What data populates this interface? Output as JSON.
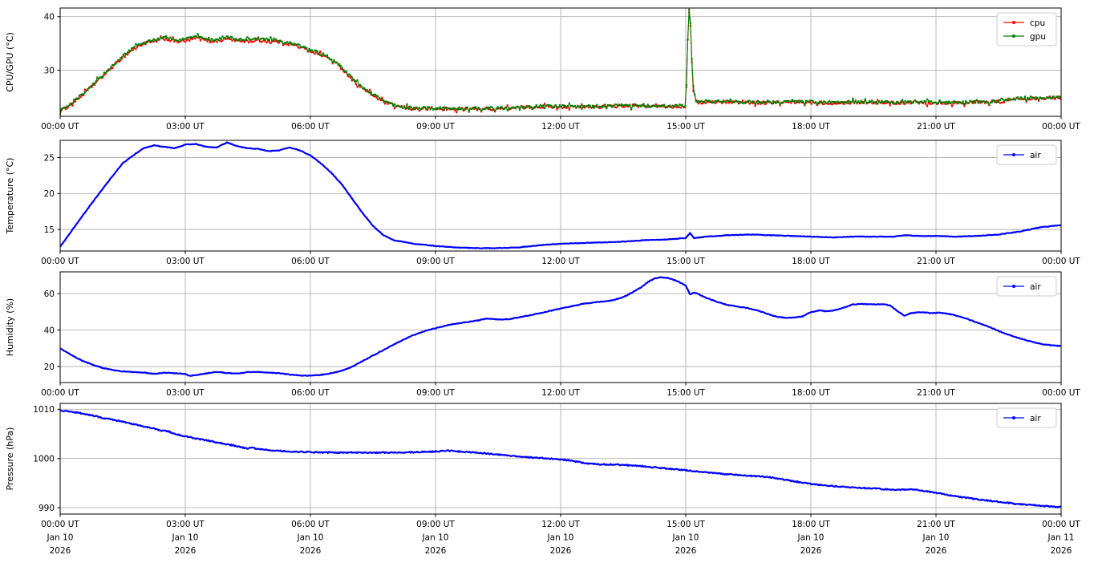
{
  "figure": {
    "background": "#ffffff",
    "grid_color": "#b0b0b0",
    "spine_color": "#000000",
    "legend_border_color": "#cccccc",
    "legend_bg": "#ffffff"
  },
  "x_axis": {
    "tick_hours": [
      0,
      3,
      6,
      9,
      12,
      15,
      18,
      21,
      24
    ],
    "tick_labels": [
      "00:00 UT",
      "03:00 UT",
      "06:00 UT",
      "09:00 UT",
      "12:00 UT",
      "15:00 UT",
      "18:00 UT",
      "21:00 UT",
      "00:00 UT"
    ],
    "date_labels": [
      "Jan 10",
      "Jan 10",
      "Jan 10",
      "Jan 10",
      "Jan 10",
      "Jan 10",
      "Jan 10",
      "Jan 10",
      "Jan 11"
    ],
    "year_labels": [
      "2026",
      "2026",
      "2026",
      "2026",
      "2026",
      "2026",
      "2026",
      "2026",
      "2026"
    ],
    "range_hours": [
      0,
      24
    ]
  },
  "chart_data": [
    {
      "type": "line",
      "panel": "cpu-gpu",
      "ylabel": "CPU/GPU (°C)",
      "ylim": [
        21.4,
        41.6
      ],
      "yticks": [
        30,
        40
      ],
      "grid": true,
      "legend_position": "upper right",
      "marker_style": "dot-scatter",
      "series": [
        {
          "name": "cpu",
          "color": "#ff0000",
          "noise": 0.28,
          "x": [
            0,
            0.25,
            0.5,
            0.75,
            1.0,
            1.25,
            1.5,
            1.75,
            2.0,
            2.25,
            2.5,
            2.75,
            3.0,
            3.25,
            3.5,
            3.75,
            4.0,
            4.25,
            4.5,
            4.75,
            5.0,
            5.25,
            5.5,
            5.75,
            6.0,
            6.25,
            6.5,
            6.75,
            7.0,
            7.25,
            7.5,
            7.75,
            8.0,
            8.25,
            8.5,
            9.0,
            9.5,
            10.0,
            10.5,
            11.0,
            11.5,
            12.0,
            12.5,
            13.0,
            13.5,
            14.0,
            14.5,
            15.0,
            15.07,
            15.1,
            15.17,
            15.25,
            15.5,
            16.0,
            16.5,
            17.0,
            17.5,
            18.0,
            18.5,
            19.0,
            19.5,
            20.0,
            20.5,
            21.0,
            21.5,
            22.0,
            22.5,
            22.9,
            23.0,
            23.5,
            24.0
          ],
          "values": [
            22.3,
            23.6,
            25.1,
            26.9,
            28.7,
            30.6,
            32.4,
            33.9,
            35.0,
            35.3,
            35.9,
            35.4,
            35.4,
            36.0,
            35.6,
            35.4,
            35.9,
            35.5,
            35.4,
            35.5,
            35.4,
            35.3,
            34.9,
            34.3,
            33.6,
            32.9,
            32.0,
            30.4,
            28.3,
            26.6,
            25.3,
            24.1,
            23.4,
            23.0,
            22.8,
            22.8,
            22.7,
            22.8,
            22.8,
            23.0,
            23.2,
            23.2,
            23.1,
            23.2,
            23.3,
            23.3,
            23.2,
            23.3,
            41.0,
            41.2,
            27.0,
            24.0,
            24.0,
            24.1,
            24.0,
            23.9,
            24.0,
            24.0,
            23.9,
            24.0,
            24.0,
            23.9,
            24.0,
            23.9,
            23.9,
            24.0,
            24.1,
            24.6,
            24.7,
            24.8,
            24.9
          ]
        },
        {
          "name": "gpu",
          "color": "#008000",
          "noise": 0.25,
          "x": [
            0,
            0.25,
            0.5,
            0.75,
            1.0,
            1.25,
            1.5,
            1.75,
            2.0,
            2.25,
            2.5,
            2.75,
            3.0,
            3.25,
            3.5,
            3.75,
            4.0,
            4.25,
            4.5,
            4.75,
            5.0,
            5.25,
            5.5,
            5.75,
            6.0,
            6.25,
            6.5,
            6.75,
            7.0,
            7.25,
            7.5,
            7.75,
            8.0,
            8.25,
            8.5,
            9.0,
            9.5,
            10.0,
            10.5,
            11.0,
            11.5,
            12.0,
            12.5,
            13.0,
            13.5,
            14.0,
            14.5,
            15.0,
            15.07,
            15.1,
            15.17,
            15.25,
            15.5,
            16.0,
            16.5,
            17.0,
            17.5,
            18.0,
            18.5,
            19.0,
            19.5,
            20.0,
            20.5,
            21.0,
            21.5,
            22.0,
            22.5,
            22.9,
            23.0,
            23.5,
            24.0
          ],
          "values": [
            22.5,
            23.8,
            25.3,
            27.1,
            28.9,
            30.8,
            32.6,
            34.1,
            35.2,
            35.6,
            36.2,
            35.7,
            35.7,
            36.3,
            35.9,
            35.7,
            36.2,
            35.8,
            35.7,
            35.8,
            35.7,
            35.5,
            35.1,
            34.5,
            33.8,
            33.1,
            32.2,
            30.6,
            28.5,
            26.8,
            25.5,
            24.3,
            23.5,
            23.1,
            22.9,
            22.9,
            22.8,
            22.9,
            22.9,
            23.1,
            23.3,
            23.3,
            23.2,
            23.3,
            23.4,
            23.4,
            23.3,
            23.4,
            41.2,
            41.4,
            27.2,
            24.1,
            24.1,
            24.2,
            24.1,
            24.0,
            24.1,
            24.1,
            24.0,
            24.1,
            24.1,
            24.0,
            24.1,
            24.0,
            24.0,
            24.1,
            24.2,
            24.7,
            24.8,
            24.9,
            25.0
          ]
        }
      ]
    },
    {
      "type": "line",
      "panel": "temperature",
      "ylabel": "Temperature (°C)",
      "ylim": [
        12.0,
        27.4
      ],
      "yticks": [
        15,
        20,
        25
      ],
      "grid": true,
      "legend_position": "upper right",
      "marker_style": "line",
      "series": [
        {
          "name": "air",
          "color": "#0000ff",
          "noise": 0.04,
          "x": [
            0,
            0.25,
            0.5,
            0.75,
            1.0,
            1.25,
            1.5,
            1.75,
            2.0,
            2.25,
            2.5,
            2.75,
            3.0,
            3.25,
            3.5,
            3.75,
            4.0,
            4.25,
            4.5,
            4.75,
            5.0,
            5.25,
            5.5,
            5.75,
            6.0,
            6.25,
            6.5,
            6.75,
            7.0,
            7.25,
            7.5,
            7.75,
            8.0,
            8.5,
            9.0,
            9.5,
            10.0,
            10.5,
            11.0,
            11.5,
            12.0,
            12.5,
            13.0,
            13.5,
            14.0,
            14.5,
            15.0,
            15.1,
            15.2,
            15.5,
            16.0,
            16.5,
            17.0,
            17.5,
            18.0,
            18.5,
            19.0,
            19.5,
            20.0,
            20.3,
            20.5,
            21.0,
            21.5,
            22.0,
            22.5,
            23.0,
            23.5,
            24.0
          ],
          "values": [
            12.6,
            14.6,
            16.6,
            18.6,
            20.5,
            22.4,
            24.2,
            25.3,
            26.3,
            26.7,
            26.5,
            26.3,
            26.8,
            26.9,
            26.5,
            26.4,
            27.1,
            26.6,
            26.3,
            26.2,
            25.9,
            26.0,
            26.4,
            26.0,
            25.3,
            24.2,
            22.9,
            21.3,
            19.3,
            17.3,
            15.5,
            14.2,
            13.5,
            13.0,
            12.7,
            12.5,
            12.4,
            12.4,
            12.5,
            12.8,
            13.0,
            13.1,
            13.2,
            13.3,
            13.5,
            13.6,
            13.8,
            14.5,
            13.8,
            14.0,
            14.2,
            14.3,
            14.2,
            14.1,
            14.0,
            13.9,
            14.0,
            14.0,
            14.0,
            14.2,
            14.1,
            14.1,
            14.0,
            14.1,
            14.3,
            14.7,
            15.3,
            15.6
          ]
        }
      ]
    },
    {
      "type": "line",
      "panel": "humidity",
      "ylabel": "Humidity (%)",
      "ylim": [
        11.2,
        71.9
      ],
      "yticks": [
        20,
        40,
        60
      ],
      "grid": true,
      "legend_position": "upper right",
      "marker_style": "line",
      "series": [
        {
          "name": "air",
          "color": "#0000ff",
          "noise": 0.18,
          "x": [
            0,
            0.25,
            0.5,
            0.75,
            1.0,
            1.25,
            1.5,
            1.75,
            2.0,
            2.25,
            2.5,
            2.75,
            3.0,
            3.1,
            3.3,
            3.5,
            3.75,
            4.0,
            4.25,
            4.5,
            4.75,
            5.0,
            5.25,
            5.5,
            5.75,
            6.0,
            6.25,
            6.5,
            6.75,
            7.0,
            7.25,
            7.5,
            7.75,
            8.0,
            8.25,
            8.5,
            8.75,
            9.0,
            9.25,
            9.5,
            9.75,
            10.0,
            10.25,
            10.5,
            10.75,
            11.0,
            11.25,
            11.5,
            11.75,
            12.0,
            12.25,
            12.5,
            12.75,
            13.0,
            13.25,
            13.5,
            13.75,
            14.0,
            14.1,
            14.25,
            14.4,
            14.6,
            14.8,
            15.0,
            15.05,
            15.1,
            15.2,
            15.3,
            15.5,
            15.75,
            16.0,
            16.25,
            16.5,
            16.75,
            17.0,
            17.2,
            17.4,
            17.6,
            17.8,
            18.0,
            18.2,
            18.35,
            18.5,
            18.75,
            19.0,
            19.2,
            19.5,
            19.75,
            19.9,
            20.1,
            20.25,
            20.4,
            20.6,
            20.9,
            21.1,
            21.4,
            21.7,
            22.0,
            22.3,
            22.6,
            23.0,
            23.3,
            23.6,
            24.0
          ],
          "values": [
            30.0,
            26.5,
            23.5,
            21.2,
            19.3,
            18.1,
            17.3,
            17.0,
            16.7,
            15.9,
            16.6,
            16.3,
            15.9,
            14.8,
            15.4,
            16.2,
            17.1,
            16.4,
            16.1,
            16.9,
            17.0,
            16.6,
            16.3,
            15.6,
            15.1,
            15.0,
            15.4,
            16.3,
            17.7,
            19.8,
            23.0,
            26.0,
            29.0,
            32.0,
            35.0,
            37.5,
            39.5,
            41.0,
            42.5,
            43.5,
            44.3,
            45.2,
            46.3,
            45.8,
            45.9,
            47.0,
            48.0,
            49.3,
            50.5,
            51.8,
            53.0,
            54.2,
            55.0,
            55.6,
            56.3,
            58.0,
            61.0,
            64.5,
            66.5,
            68.2,
            69.0,
            68.4,
            66.8,
            64.5,
            62.0,
            59.5,
            60.5,
            59.8,
            57.5,
            55.5,
            53.8,
            52.8,
            52.0,
            50.5,
            48.5,
            47.2,
            46.8,
            46.8,
            47.5,
            49.8,
            50.8,
            50.3,
            50.5,
            52.0,
            54.0,
            54.3,
            54.0,
            54.2,
            53.5,
            50.0,
            47.8,
            49.3,
            49.8,
            49.3,
            49.5,
            48.5,
            46.5,
            44.0,
            41.5,
            38.5,
            35.5,
            33.5,
            32.0,
            31.2
          ]
        }
      ]
    },
    {
      "type": "line",
      "panel": "pressure",
      "ylabel": "Pressure (hPa)",
      "ylim": [
        988.7,
        1011.2
      ],
      "yticks": [
        990,
        1000,
        1010
      ],
      "grid": true,
      "legend_position": "upper right",
      "marker_style": "line",
      "show_dates": true,
      "series": [
        {
          "name": "air",
          "color": "#0000ff",
          "noise": 0.12,
          "x": [
            0,
            0.25,
            0.5,
            0.75,
            1.0,
            1.25,
            1.5,
            1.75,
            2.0,
            2.25,
            2.4,
            2.6,
            2.75,
            3.0,
            3.25,
            3.5,
            3.75,
            4.0,
            4.25,
            4.5,
            4.6,
            4.75,
            5.0,
            5.5,
            6.0,
            6.5,
            7.0,
            7.5,
            8.0,
            8.5,
            9.0,
            9.3,
            9.6,
            10.0,
            10.5,
            11.0,
            11.5,
            12.0,
            12.3,
            12.6,
            13.0,
            13.5,
            14.0,
            14.5,
            15.0,
            15.5,
            16.0,
            16.5,
            17.0,
            17.5,
            18.0,
            18.5,
            19.0,
            19.5,
            20.0,
            20.5,
            20.8,
            21.0,
            21.5,
            22.0,
            22.5,
            23.0,
            23.5,
            24.0
          ],
          "values": [
            1009.7,
            1009.5,
            1009.2,
            1008.8,
            1008.3,
            1007.9,
            1007.5,
            1007.0,
            1006.5,
            1006.1,
            1005.7,
            1005.5,
            1005.0,
            1004.5,
            1004.1,
            1003.7,
            1003.3,
            1002.9,
            1002.5,
            1002.0,
            1002.2,
            1001.9,
            1001.7,
            1001.4,
            1001.3,
            1001.2,
            1001.2,
            1001.2,
            1001.2,
            1001.3,
            1001.4,
            1001.6,
            1001.4,
            1001.2,
            1000.8,
            1000.4,
            1000.1,
            999.8,
            999.5,
            999.0,
            998.8,
            998.7,
            998.4,
            998.0,
            997.6,
            997.2,
            996.8,
            996.5,
            996.2,
            995.5,
            994.8,
            994.4,
            994.1,
            993.9,
            993.6,
            993.7,
            993.3,
            993.0,
            992.3,
            991.7,
            991.2,
            990.7,
            990.4,
            990.1
          ]
        }
      ]
    }
  ]
}
